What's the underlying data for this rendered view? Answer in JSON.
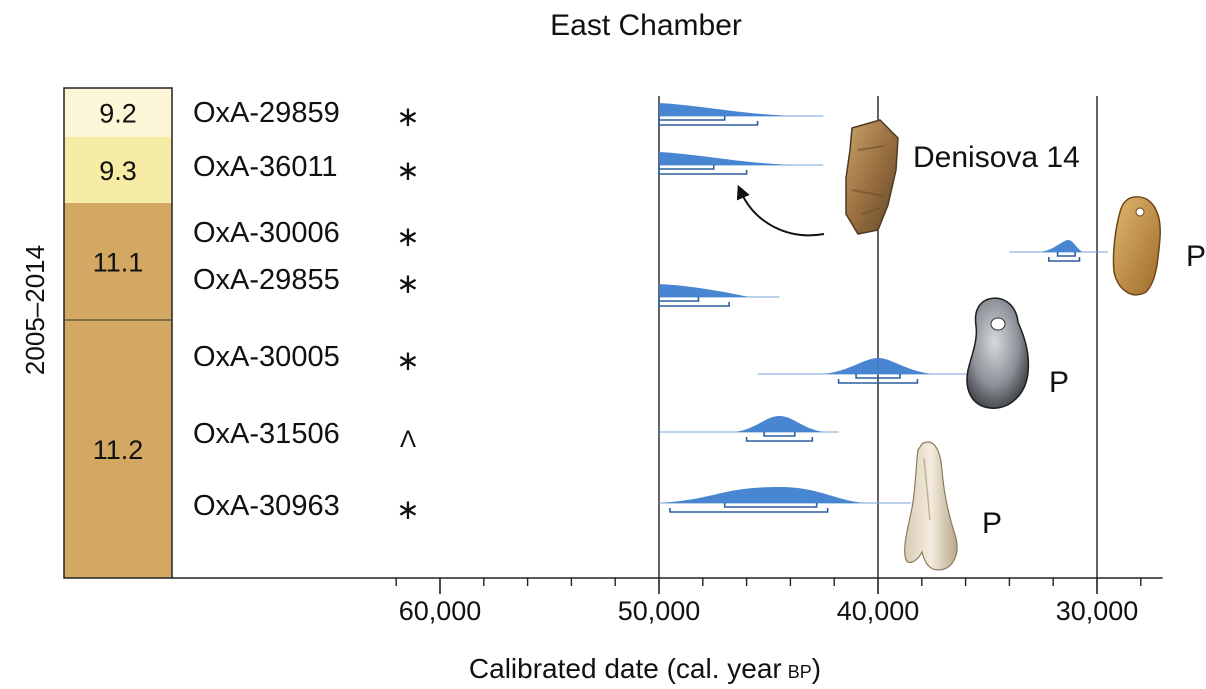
{
  "title": "East Chamber",
  "side_label": "2005–2014",
  "colors": {
    "layer_pale": "#fdf6d8",
    "layer_yellow": "#f7eca6",
    "layer_brown": "#d2a862",
    "distribution_fill": "#3f7fcf",
    "range_line": "#2a5f9e",
    "axis": "#222222"
  },
  "chart_data": {
    "type": "range",
    "title": "East Chamber",
    "xlabel": "Calibrated date (cal. year",
    "xlabel_unit": "BP",
    "xlabel_close": ")",
    "x_reversed": true,
    "xlim": [
      67000,
      27000
    ],
    "major_ticks": [
      60000,
      50000,
      40000,
      30000
    ],
    "minor_tick_step": 2000,
    "tick_labels": [
      "60,000",
      "50,000",
      "40,000",
      "30,000"
    ],
    "reference_lines": [
      50000,
      40000,
      30000
    ],
    "layers": [
      {
        "label": "9.2",
        "rows": 1,
        "color": "layer_pale"
      },
      {
        "label": "9.3",
        "rows": 1,
        "color": "layer_yellow"
      },
      {
        "label": "11.1",
        "rows": 2,
        "color": "layer_brown"
      },
      {
        "label": "11.2",
        "rows": 3,
        "color": "layer_brown"
      }
    ],
    "samples": [
      {
        "id": "OxA-29859",
        "marker": "*",
        "peak": 50000,
        "tail_end": 42500,
        "shape": "rising",
        "range_68": [
          50000,
          47000
        ],
        "range_95": [
          50000,
          45500
        ]
      },
      {
        "id": "OxA-36011",
        "marker": "*",
        "peak": 50000,
        "tail_end": 42500,
        "shape": "rising",
        "range_68": [
          50000,
          47500
        ],
        "range_95": [
          50000,
          46000
        ]
      },
      {
        "id": "OxA-30006",
        "marker": "*",
        "peak": 31300,
        "tail_end": 29500,
        "tail_start": 34000,
        "shape": "narrow",
        "range_68": [
          31800,
          31000
        ],
        "range_95": [
          32200,
          30800
        ]
      },
      {
        "id": "OxA-29855",
        "marker": "*",
        "peak": 50000,
        "tail_end": 44500,
        "shape": "rising",
        "range_68": [
          50000,
          48200
        ],
        "range_95": [
          50000,
          46800
        ]
      },
      {
        "id": "OxA-30005",
        "marker": "*",
        "peak": 40000,
        "tail_end": 35000,
        "tail_start": 45500,
        "shape": "bell",
        "range_68": [
          41000,
          39000
        ],
        "range_95": [
          41800,
          38200
        ]
      },
      {
        "id": "OxA-31506",
        "marker": "^",
        "peak": 44500,
        "tail_end": 41800,
        "tail_start": 50000,
        "shape": "bell",
        "range_68": [
          45200,
          43800
        ],
        "range_95": [
          46000,
          43000
        ]
      },
      {
        "id": "OxA-30963",
        "marker": "*",
        "peak": 44500,
        "tail_end": 38500,
        "tail_start": 50000,
        "shape": "wide",
        "range_68": [
          47000,
          42800
        ],
        "range_95": [
          49500,
          42300
        ]
      }
    ],
    "annotations": [
      {
        "label": "Denisova 14",
        "kind": "specimen"
      },
      {
        "label": "P",
        "kind": "pendant"
      },
      {
        "label": "P",
        "kind": "pendant"
      },
      {
        "label": "P",
        "kind": "pendant"
      }
    ]
  }
}
